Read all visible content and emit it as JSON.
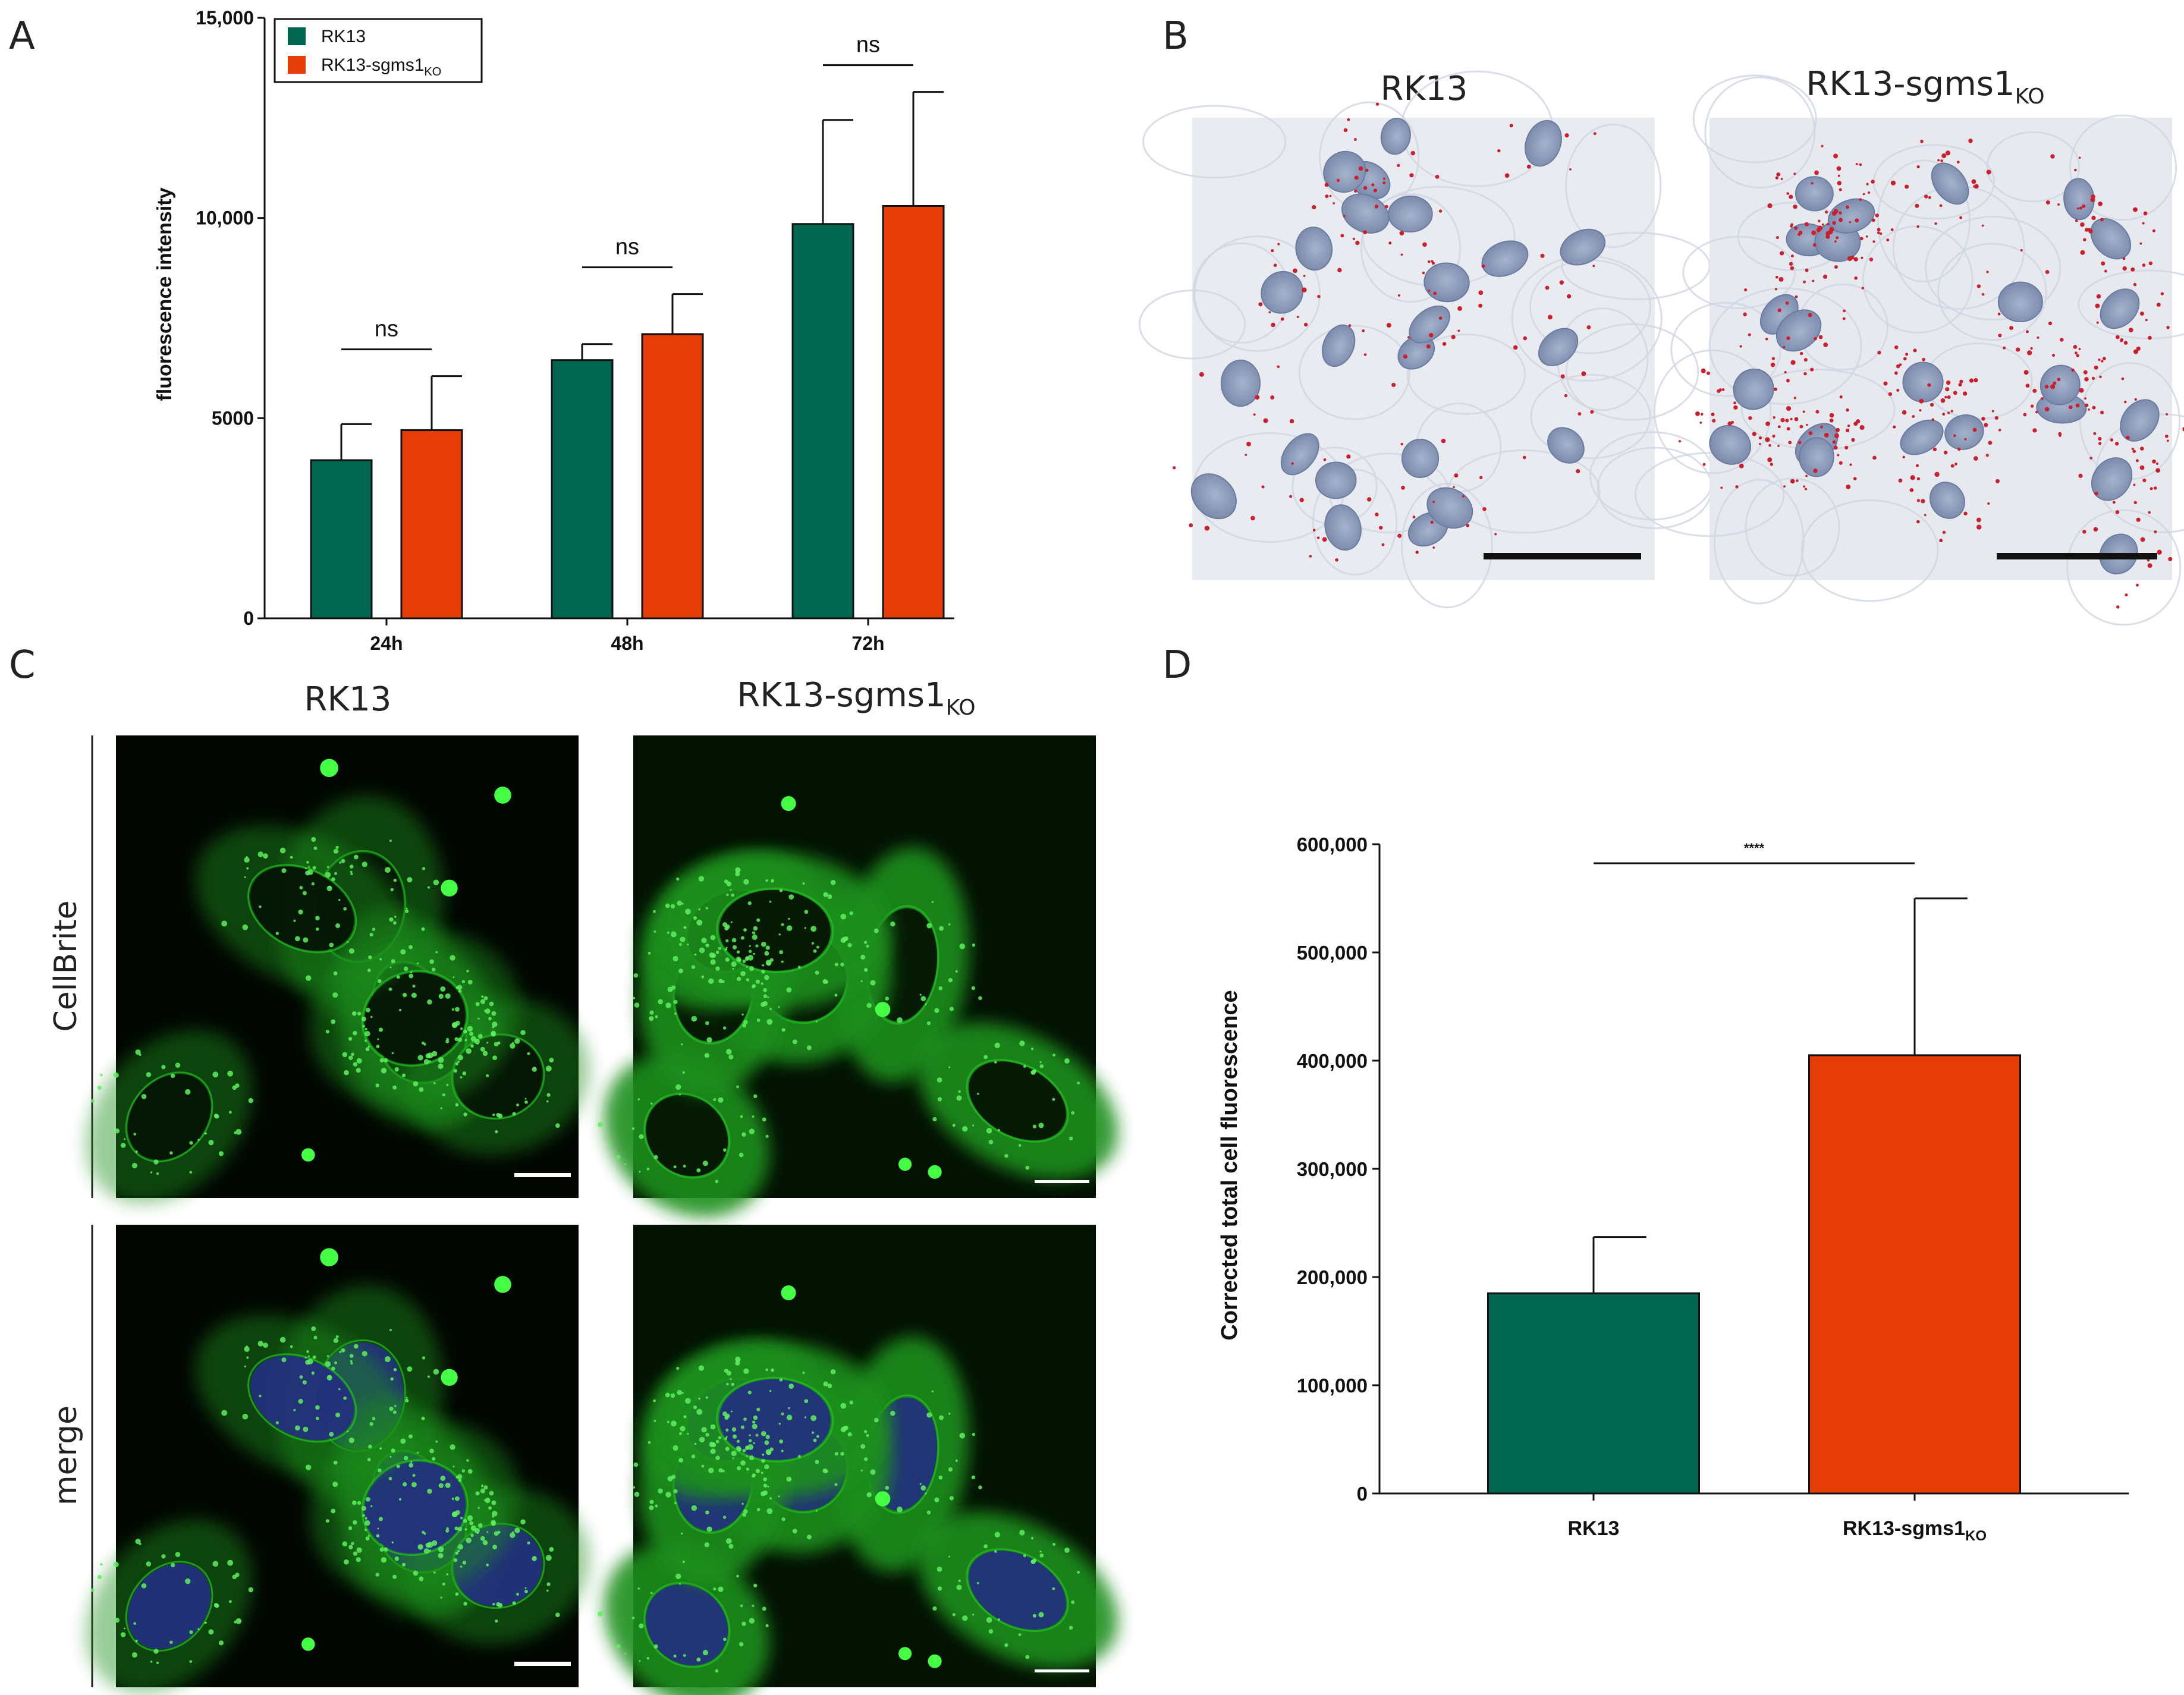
{
  "panels": {
    "a": {
      "letter": "A"
    },
    "b": {
      "letter": "B",
      "titles": {
        "left": "RK13",
        "right_main": "RK13-sgms1",
        "right_sub": "KO"
      }
    },
    "c": {
      "letter": "C",
      "titles": {
        "left": "RK13",
        "right_main": "RK13-sgms1",
        "right_sub": "KO"
      },
      "row_labels": [
        "CellBrite",
        "merge"
      ]
    },
    "d": {
      "letter": "D"
    }
  },
  "colors": {
    "rk13": "#006650",
    "ko": "#E63C06",
    "ihc_background": "#e8ecf1",
    "nucleus": "#8f9fbd",
    "red_dot": "#cc1f2e",
    "fluor_green": "#22c222",
    "dapi_blue": "#23307c"
  },
  "chart_data": [
    {
      "id": "A",
      "type": "bar",
      "title": "",
      "xlabel": "",
      "ylabel": "fluorescence intensity",
      "categories": [
        "24h",
        "48h",
        "72h"
      ],
      "series": [
        {
          "name": "RK13",
          "name_main": "RK13",
          "name_sub": "",
          "values": [
            3950,
            6450,
            9850
          ],
          "errors": [
            900,
            400,
            2600
          ]
        },
        {
          "name": "RK13-sgms1KO",
          "name_main": "RK13-sgms1",
          "name_sub": "KO",
          "values": [
            4700,
            7100,
            10300
          ],
          "errors": [
            1350,
            1000,
            2850
          ]
        }
      ],
      "ylim": [
        0,
        15000
      ],
      "yticks": [
        0,
        5000,
        10000,
        15000
      ],
      "ytick_labels": [
        "0",
        "5000",
        "10,000",
        "15,000"
      ],
      "significance": [
        "ns",
        "ns",
        "ns"
      ],
      "legend": "top-left"
    },
    {
      "id": "D",
      "type": "bar",
      "title": "",
      "xlabel": "",
      "ylabel": "Corrected total cell fluorescence",
      "categories": [
        "RK13",
        "RK13-sgms1KO"
      ],
      "category_labels": [
        {
          "main": "RK13",
          "sub": ""
        },
        {
          "main": "RK13-sgms1",
          "sub": "KO"
        }
      ],
      "values": [
        185000,
        405000
      ],
      "errors": [
        52000,
        145000
      ],
      "ylim": [
        0,
        600000
      ],
      "yticks": [
        0,
        100000,
        200000,
        300000,
        400000,
        500000,
        600000
      ],
      "ytick_labels": [
        "0",
        "100,000",
        "200,000",
        "300,000",
        "400,000",
        "500,000",
        "600,000"
      ],
      "significance": "****"
    }
  ]
}
